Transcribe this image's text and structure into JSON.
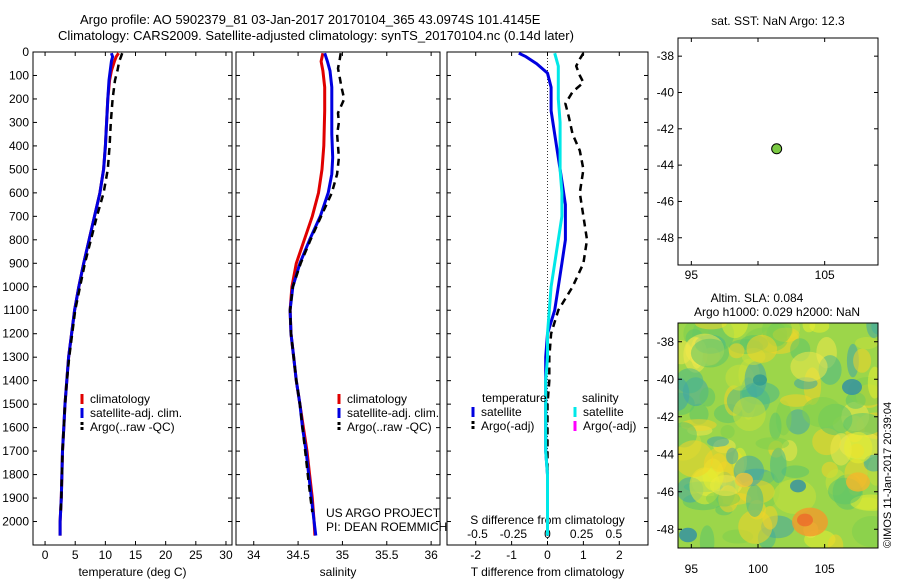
{
  "header": {
    "line1": "Argo profile: AO 5902379_81 03-Jan-2017 20170104_365 43.0974S 101.4145E",
    "line2": "Climatology: CARS2009. Satellite-adjusted climatology: synTS_20170104.nc (0.14d later)"
  },
  "credits": {
    "project": "US ARGO PROJECT",
    "pi": "PI: DEAN ROEMMICH",
    "imos": "©IMOS 11-Jan-2017 20:39:04"
  },
  "colors": {
    "climatology": "#e00000",
    "satellite": "#0000e0",
    "argo": "#000000",
    "sal_satellite": "#00e8e8",
    "sal_argo": "#ff00ff"
  },
  "chart_data": [
    {
      "id": "temperature",
      "type": "line",
      "xlabel": "temperature (deg C)",
      "ylabel": "",
      "xlim": [
        -2,
        31
      ],
      "ylim": [
        2100,
        0
      ],
      "xticks": [
        0,
        5,
        10,
        15,
        20,
        25,
        30
      ],
      "yticks": [
        0,
        100,
        200,
        300,
        400,
        500,
        600,
        700,
        800,
        900,
        1000,
        1100,
        1200,
        1300,
        1400,
        1500,
        1600,
        1700,
        1800,
        1900,
        2000
      ],
      "legend": [
        "climatology",
        "satellite-adj. clim.",
        "Argo(..raw -QC)"
      ],
      "legend_position": "center-right",
      "series": [
        {
          "name": "climatology",
          "color": "#e00000",
          "points": [
            [
              12.2,
              5
            ],
            [
              11.8,
              20
            ],
            [
              11.5,
              40
            ],
            [
              11.0,
              80
            ],
            [
              10.7,
              120
            ],
            [
              10.4,
              200
            ],
            [
              10.2,
              300
            ],
            [
              10.0,
              400
            ],
            [
              9.7,
              500
            ],
            [
              9.1,
              600
            ],
            [
              8.2,
              700
            ],
            [
              7.3,
              800
            ],
            [
              6.4,
              900
            ],
            [
              5.6,
              1000
            ],
            [
              4.9,
              1100
            ],
            [
              4.4,
              1200
            ],
            [
              3.9,
              1300
            ],
            [
              3.6,
              1400
            ],
            [
              3.3,
              1500
            ],
            [
              3.1,
              1600
            ],
            [
              2.9,
              1700
            ],
            [
              2.8,
              1800
            ],
            [
              2.7,
              1900
            ],
            [
              2.5,
              2000
            ],
            [
              2.5,
              2060
            ]
          ]
        },
        {
          "name": "satellite-adj. clim.",
          "color": "#0000e0",
          "points": [
            [
              11.0,
              5
            ],
            [
              11.2,
              20
            ],
            [
              11.0,
              40
            ],
            [
              10.8,
              80
            ],
            [
              10.6,
              120
            ],
            [
              10.4,
              200
            ],
            [
              10.2,
              300
            ],
            [
              10.0,
              400
            ],
            [
              9.7,
              500
            ],
            [
              9.1,
              600
            ],
            [
              8.2,
              700
            ],
            [
              7.3,
              800
            ],
            [
              6.4,
              900
            ],
            [
              5.6,
              1000
            ],
            [
              4.9,
              1100
            ],
            [
              4.4,
              1200
            ],
            [
              3.9,
              1300
            ],
            [
              3.6,
              1400
            ],
            [
              3.3,
              1500
            ],
            [
              3.1,
              1600
            ],
            [
              2.9,
              1700
            ],
            [
              2.8,
              1800
            ],
            [
              2.7,
              1900
            ],
            [
              2.5,
              2000
            ],
            [
              2.5,
              2060
            ]
          ]
        },
        {
          "name": "Argo(..raw -QC)",
          "color": "#000000",
          "dashed": true,
          "points": [
            [
              12.8,
              5
            ],
            [
              12.6,
              20
            ],
            [
              12.3,
              40
            ],
            [
              12.0,
              80
            ],
            [
              11.6,
              120
            ],
            [
              11.2,
              200
            ],
            [
              10.9,
              300
            ],
            [
              10.7,
              400
            ],
            [
              10.4,
              500
            ],
            [
              9.7,
              600
            ],
            [
              8.6,
              700
            ],
            [
              7.6,
              800
            ],
            [
              6.6,
              900
            ],
            [
              5.8,
              1000
            ],
            [
              5.0,
              1100
            ],
            [
              4.5,
              1200
            ],
            [
              4.0,
              1300
            ],
            [
              3.6,
              1400
            ],
            [
              3.3,
              1500
            ],
            [
              3.1,
              1600
            ],
            [
              2.9,
              1700
            ],
            [
              2.8,
              1800
            ],
            [
              2.7,
              1900
            ],
            [
              2.6,
              1960
            ]
          ]
        }
      ]
    },
    {
      "id": "salinity",
      "type": "line",
      "xlabel": "salinity",
      "xlim": [
        33.8,
        36.1
      ],
      "ylim": [
        2100,
        0
      ],
      "xticks": [
        34,
        34.5,
        35,
        35.5,
        36
      ],
      "xtick_labels": [
        "34",
        "34.5",
        "35",
        "35.5",
        "36"
      ],
      "legend": [
        "climatology",
        "satellite-adj. clim.",
        "Argo(..raw -QC)"
      ],
      "legend_position": "center-right",
      "series": [
        {
          "name": "climatology",
          "color": "#e00000",
          "points": [
            [
              34.78,
              5
            ],
            [
              34.76,
              40
            ],
            [
              34.78,
              80
            ],
            [
              34.8,
              150
            ],
            [
              34.8,
              250
            ],
            [
              34.79,
              400
            ],
            [
              34.77,
              500
            ],
            [
              34.73,
              600
            ],
            [
              34.66,
              700
            ],
            [
              34.57,
              800
            ],
            [
              34.48,
              900
            ],
            [
              34.43,
              1000
            ],
            [
              34.41,
              1100
            ],
            [
              34.42,
              1200
            ],
            [
              34.45,
              1300
            ],
            [
              34.48,
              1400
            ],
            [
              34.52,
              1500
            ],
            [
              34.56,
              1600
            ],
            [
              34.6,
              1700
            ],
            [
              34.63,
              1800
            ],
            [
              34.66,
              1900
            ],
            [
              34.68,
              2000
            ],
            [
              34.69,
              2060
            ]
          ]
        },
        {
          "name": "satellite-adj. clim.",
          "color": "#0000e0",
          "points": [
            [
              34.8,
              5
            ],
            [
              34.83,
              40
            ],
            [
              34.86,
              80
            ],
            [
              34.88,
              150
            ],
            [
              34.88,
              250
            ],
            [
              34.88,
              350
            ],
            [
              34.89,
              450
            ],
            [
              34.88,
              520
            ],
            [
              34.84,
              600
            ],
            [
              34.75,
              700
            ],
            [
              34.63,
              800
            ],
            [
              34.52,
              900
            ],
            [
              34.44,
              1000
            ],
            [
              34.41,
              1100
            ],
            [
              34.42,
              1200
            ],
            [
              34.45,
              1300
            ],
            [
              34.48,
              1400
            ],
            [
              34.52,
              1500
            ],
            [
              34.55,
              1600
            ],
            [
              34.59,
              1700
            ],
            [
              34.62,
              1800
            ],
            [
              34.65,
              1900
            ],
            [
              34.68,
              2000
            ],
            [
              34.7,
              2060
            ]
          ]
        },
        {
          "name": "Argo(..raw -QC)",
          "color": "#000000",
          "dashed": true,
          "points": [
            [
              34.98,
              5
            ],
            [
              34.97,
              30
            ],
            [
              34.95,
              70
            ],
            [
              34.97,
              110
            ],
            [
              34.99,
              150
            ],
            [
              35.02,
              200
            ],
            [
              34.95,
              260
            ],
            [
              34.96,
              300
            ],
            [
              34.94,
              350
            ],
            [
              34.95,
              400
            ],
            [
              34.96,
              450
            ],
            [
              34.94,
              520
            ],
            [
              34.88,
              600
            ],
            [
              34.76,
              700
            ],
            [
              34.64,
              800
            ],
            [
              34.53,
              900
            ],
            [
              34.44,
              1000
            ],
            [
              34.41,
              1100
            ],
            [
              34.42,
              1200
            ],
            [
              34.45,
              1300
            ],
            [
              34.48,
              1400
            ],
            [
              34.52,
              1500
            ],
            [
              34.55,
              1600
            ],
            [
              34.58,
              1700
            ],
            [
              34.61,
              1800
            ],
            [
              34.64,
              1900
            ],
            [
              34.66,
              1960
            ]
          ]
        }
      ]
    },
    {
      "id": "difference",
      "type": "line",
      "xlabel": "T difference from climatology",
      "xlabel_top": "S difference from climatology",
      "xlim": [
        -2.8,
        2.8
      ],
      "ylim": [
        2100,
        0
      ],
      "xticks": [
        -2,
        -1,
        0,
        1,
        2
      ],
      "xtick_labels": [
        "-2",
        "-1",
        "0",
        "1",
        "2"
      ],
      "xticks_top": [
        "-0.5",
        "-0.25",
        "0",
        "0.25",
        "0.5"
      ],
      "legend_groups": {
        "temperature": [
          "satellite",
          "Argo(-adj)"
        ],
        "salinity": [
          "satellite",
          "Argo(-adj)"
        ]
      },
      "legend_position": "center",
      "series": [
        {
          "name": "temperature satellite",
          "color": "#0000e0",
          "points": [
            [
              -0.8,
              5
            ],
            [
              -0.6,
              20
            ],
            [
              -0.3,
              50
            ],
            [
              0.0,
              90
            ],
            [
              0.1,
              150
            ],
            [
              0.1,
              250
            ],
            [
              0.2,
              350
            ],
            [
              0.3,
              450
            ],
            [
              0.4,
              550
            ],
            [
              0.5,
              650
            ],
            [
              0.5,
              700
            ],
            [
              0.5,
              800
            ],
            [
              0.4,
              900
            ],
            [
              0.3,
              1000
            ],
            [
              0.2,
              1100
            ],
            [
              0.0,
              1200
            ],
            [
              -0.05,
              1300
            ],
            [
              -0.05,
              1400
            ],
            [
              -0.05,
              1500
            ],
            [
              -0.05,
              1600
            ],
            [
              -0.05,
              1700
            ],
            [
              0.0,
              1800
            ],
            [
              0.0,
              1900
            ],
            [
              0.0,
              2000
            ],
            [
              0.0,
              2060
            ]
          ]
        },
        {
          "name": "temperature Argo(-adj)",
          "color": "#000000",
          "dashed": true,
          "points": [
            [
              1.0,
              5
            ],
            [
              0.9,
              30
            ],
            [
              0.8,
              60
            ],
            [
              0.9,
              100
            ],
            [
              1.0,
              130
            ],
            [
              0.7,
              170
            ],
            [
              0.5,
              220
            ],
            [
              0.6,
              280
            ],
            [
              0.7,
              350
            ],
            [
              0.9,
              420
            ],
            [
              1.0,
              500
            ],
            [
              0.9,
              600
            ],
            [
              1.0,
              700
            ],
            [
              1.1,
              800
            ],
            [
              1.0,
              900
            ],
            [
              0.7,
              1000
            ],
            [
              0.3,
              1100
            ],
            [
              0.1,
              1200
            ],
            [
              0.05,
              1300
            ],
            [
              0.05,
              1400
            ],
            [
              0.0,
              1500
            ],
            [
              0.0,
              1600
            ],
            [
              0.0,
              1700
            ],
            [
              0.0,
              1800
            ],
            [
              0.0,
              1900
            ],
            [
              0.0,
              1960
            ]
          ]
        },
        {
          "name": "salinity satellite",
          "color": "#00e8e8",
          "points": [
            [
              0.2,
              5
            ],
            [
              0.3,
              60
            ],
            [
              0.3,
              120
            ],
            [
              0.3,
              200
            ],
            [
              0.35,
              300
            ],
            [
              0.35,
              400
            ],
            [
              0.35,
              500
            ],
            [
              0.4,
              600
            ],
            [
              0.4,
              700
            ],
            [
              0.3,
              800
            ],
            [
              0.2,
              900
            ],
            [
              0.1,
              1000
            ],
            [
              0.05,
              1100
            ],
            [
              0.0,
              1200
            ],
            [
              0.0,
              1300
            ],
            [
              -0.05,
              1400
            ],
            [
              -0.05,
              1500
            ],
            [
              -0.05,
              1600
            ],
            [
              -0.05,
              1700
            ],
            [
              0.0,
              1800
            ],
            [
              0.0,
              1900
            ],
            [
              0.0,
              2000
            ],
            [
              0.0,
              2060
            ]
          ]
        }
      ]
    },
    {
      "id": "sst-map",
      "type": "scatter",
      "title": "sat. SST: NaN Argo: 12.3",
      "xlim": [
        94,
        109
      ],
      "ylim": [
        -49.5,
        -37
      ],
      "xticks": [
        95,
        100,
        105
      ],
      "xtick_labels": [
        "95",
        "",
        "105"
      ],
      "yticks": [
        -38,
        -40,
        -42,
        -44,
        -46,
        -48
      ],
      "points": [
        [
          101.4,
          -43.1
        ]
      ],
      "marker_color": "#7ac943"
    },
    {
      "id": "sla-map",
      "type": "heatmap",
      "title": "Altim. SLA: 0.084",
      "subtitle": "Argo h1000: 0.029 h2000: NaN",
      "xlim": [
        94,
        109
      ],
      "ylim": [
        -49,
        -37
      ],
      "xticks": [
        95,
        100,
        105
      ],
      "yticks": [
        -38,
        -40,
        -42,
        -44,
        -46,
        -48
      ]
    }
  ]
}
